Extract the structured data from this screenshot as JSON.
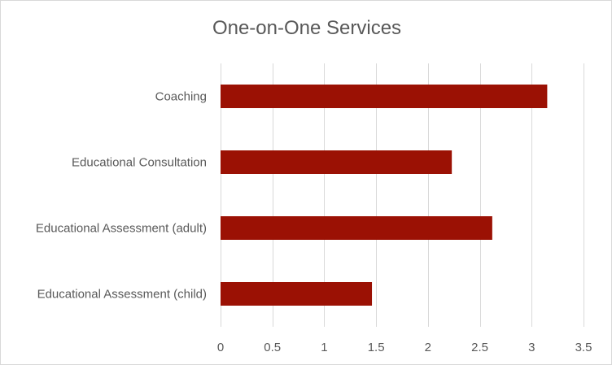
{
  "chart_data": {
    "type": "bar",
    "orientation": "horizontal",
    "title": "One-on-One Services",
    "xlabel": "",
    "ylabel": "",
    "categories": [
      "Coaching",
      "Educational Consultation",
      "Educational Assessment (adult)",
      "Educational Assessment (child)"
    ],
    "values": [
      3.15,
      2.23,
      2.62,
      1.46
    ],
    "xlim": [
      0,
      3.5
    ],
    "x_ticks": [
      0,
      0.5,
      1,
      1.5,
      2,
      2.5,
      3,
      3.5
    ],
    "x_tick_labels": [
      "0",
      "0.5",
      "1",
      "1.5",
      "2",
      "2.5",
      "3",
      "3.5"
    ],
    "grid": "vertical",
    "legend": "none",
    "bar_color": "#9b1104",
    "gridline_color": "#d9d9d9"
  }
}
